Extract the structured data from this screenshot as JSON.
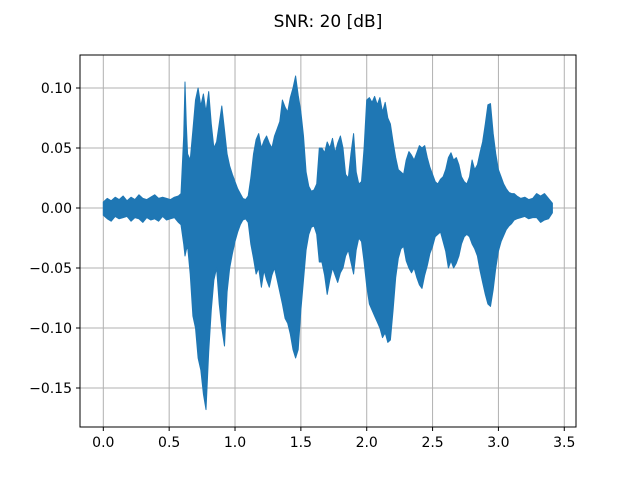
{
  "figure": {
    "background": "#ffffff"
  },
  "chart_data": {
    "type": "line",
    "subtype": "audio-waveform-envelope",
    "title": "SNR: 20 [dB]",
    "xlabel": "",
    "ylabel": "",
    "grid": true,
    "legend_position": "none",
    "line_color": "#1f77b4",
    "grid_color": "#b0b0b0",
    "frame_color": "#000000",
    "xlim": [
      -0.177,
      3.589
    ],
    "ylim": [
      -0.1825,
      0.1275
    ],
    "xticks": {
      "values": [
        0.0,
        0.5,
        1.0,
        1.5,
        2.0,
        2.5,
        3.0,
        3.5
      ],
      "labels": [
        "0.0",
        "0.5",
        "1.0",
        "1.5",
        "2.0",
        "2.5",
        "3.0",
        "3.5"
      ]
    },
    "yticks": {
      "values": [
        0.1,
        0.05,
        0.0,
        -0.05,
        -0.1,
        -0.15
      ],
      "labels": [
        "0.10",
        "0.05",
        "0.00",
        "−0.05",
        "−0.10",
        "−0.15"
      ]
    },
    "signal_duration_seconds": 3.41,
    "signal_peak_max": 0.11,
    "signal_peak_min": -0.168,
    "envelope_points": [
      [
        0.0,
        0.005,
        -0.006
      ],
      [
        0.03,
        0.008,
        -0.009
      ],
      [
        0.06,
        0.006,
        -0.011
      ],
      [
        0.09,
        0.009,
        -0.007
      ],
      [
        0.12,
        0.007,
        -0.009
      ],
      [
        0.15,
        0.01,
        -0.008
      ],
      [
        0.18,
        0.006,
        -0.007
      ],
      [
        0.21,
        0.009,
        -0.011
      ],
      [
        0.24,
        0.007,
        -0.008
      ],
      [
        0.27,
        0.011,
        -0.009
      ],
      [
        0.3,
        0.008,
        -0.012
      ],
      [
        0.33,
        0.007,
        -0.008
      ],
      [
        0.36,
        0.009,
        -0.01
      ],
      [
        0.39,
        0.011,
        -0.009
      ],
      [
        0.42,
        0.008,
        -0.011
      ],
      [
        0.45,
        0.009,
        -0.007
      ],
      [
        0.48,
        0.008,
        -0.01
      ],
      [
        0.51,
        0.007,
        -0.009
      ],
      [
        0.54,
        0.009,
        -0.008
      ],
      [
        0.57,
        0.01,
        -0.012
      ],
      [
        0.59,
        0.012,
        -0.014
      ],
      [
        0.61,
        0.06,
        -0.03
      ],
      [
        0.62,
        0.105,
        -0.04
      ],
      [
        0.63,
        0.07,
        -0.035
      ],
      [
        0.64,
        0.045,
        -0.032
      ],
      [
        0.66,
        0.04,
        -0.055
      ],
      [
        0.68,
        0.065,
        -0.09
      ],
      [
        0.7,
        0.09,
        -0.1
      ],
      [
        0.72,
        0.1,
        -0.125
      ],
      [
        0.74,
        0.085,
        -0.135
      ],
      [
        0.76,
        0.095,
        -0.155
      ],
      [
        0.78,
        0.08,
        -0.168
      ],
      [
        0.8,
        0.097,
        -0.12
      ],
      [
        0.82,
        0.07,
        -0.085
      ],
      [
        0.84,
        0.05,
        -0.06
      ],
      [
        0.86,
        0.055,
        -0.05
      ],
      [
        0.88,
        0.07,
        -0.08
      ],
      [
        0.9,
        0.085,
        -0.1
      ],
      [
        0.92,
        0.065,
        -0.115
      ],
      [
        0.94,
        0.045,
        -0.07
      ],
      [
        0.96,
        0.035,
        -0.05
      ],
      [
        0.98,
        0.028,
        -0.038
      ],
      [
        1.0,
        0.022,
        -0.028
      ],
      [
        1.02,
        0.016,
        -0.02
      ],
      [
        1.04,
        0.012,
        -0.014
      ],
      [
        1.06,
        0.008,
        -0.01
      ],
      [
        1.08,
        0.007,
        -0.009
      ],
      [
        1.1,
        0.01,
        -0.012
      ],
      [
        1.12,
        0.025,
        -0.03
      ],
      [
        1.14,
        0.045,
        -0.042
      ],
      [
        1.16,
        0.057,
        -0.055
      ],
      [
        1.18,
        0.062,
        -0.05
      ],
      [
        1.2,
        0.05,
        -0.066
      ],
      [
        1.22,
        0.056,
        -0.052
      ],
      [
        1.24,
        0.06,
        -0.06
      ],
      [
        1.26,
        0.054,
        -0.066
      ],
      [
        1.28,
        0.05,
        -0.056
      ],
      [
        1.3,
        0.06,
        -0.05
      ],
      [
        1.32,
        0.066,
        -0.06
      ],
      [
        1.34,
        0.072,
        -0.07
      ],
      [
        1.36,
        0.09,
        -0.08
      ],
      [
        1.38,
        0.084,
        -0.092
      ],
      [
        1.4,
        0.08,
        -0.096
      ],
      [
        1.42,
        0.092,
        -0.105
      ],
      [
        1.44,
        0.1,
        -0.118
      ],
      [
        1.46,
        0.11,
        -0.125
      ],
      [
        1.48,
        0.094,
        -0.118
      ],
      [
        1.5,
        0.08,
        -0.085
      ],
      [
        1.52,
        0.06,
        -0.06
      ],
      [
        1.54,
        0.03,
        -0.035
      ],
      [
        1.56,
        0.018,
        -0.022
      ],
      [
        1.58,
        0.014,
        -0.016
      ],
      [
        1.6,
        0.015,
        -0.015
      ],
      [
        1.62,
        0.02,
        -0.022
      ],
      [
        1.64,
        0.05,
        -0.045
      ],
      [
        1.66,
        0.05,
        -0.045
      ],
      [
        1.68,
        0.046,
        -0.056
      ],
      [
        1.7,
        0.055,
        -0.072
      ],
      [
        1.72,
        0.05,
        -0.06
      ],
      [
        1.74,
        0.058,
        -0.05
      ],
      [
        1.76,
        0.046,
        -0.056
      ],
      [
        1.78,
        0.054,
        -0.062
      ],
      [
        1.8,
        0.06,
        -0.054
      ],
      [
        1.82,
        0.05,
        -0.05
      ],
      [
        1.84,
        0.028,
        -0.04
      ],
      [
        1.86,
        0.025,
        -0.035
      ],
      [
        1.88,
        0.045,
        -0.045
      ],
      [
        1.9,
        0.062,
        -0.055
      ],
      [
        1.92,
        0.03,
        -0.035
      ],
      [
        1.94,
        0.02,
        -0.025
      ],
      [
        1.96,
        0.022,
        -0.028
      ],
      [
        1.98,
        0.05,
        -0.045
      ],
      [
        2.0,
        0.09,
        -0.065
      ],
      [
        2.02,
        0.092,
        -0.08
      ],
      [
        2.04,
        0.088,
        -0.085
      ],
      [
        2.06,
        0.093,
        -0.09
      ],
      [
        2.08,
        0.086,
        -0.095
      ],
      [
        2.1,
        0.092,
        -0.1
      ],
      [
        2.12,
        0.08,
        -0.108
      ],
      [
        2.14,
        0.088,
        -0.104
      ],
      [
        2.16,
        0.075,
        -0.112
      ],
      [
        2.18,
        0.07,
        -0.11
      ],
      [
        2.2,
        0.055,
        -0.085
      ],
      [
        2.22,
        0.042,
        -0.058
      ],
      [
        2.24,
        0.032,
        -0.042
      ],
      [
        2.26,
        0.03,
        -0.034
      ],
      [
        2.28,
        0.028,
        -0.032
      ],
      [
        2.3,
        0.04,
        -0.044
      ],
      [
        2.32,
        0.047,
        -0.05
      ],
      [
        2.34,
        0.044,
        -0.054
      ],
      [
        2.36,
        0.04,
        -0.05
      ],
      [
        2.38,
        0.046,
        -0.058
      ],
      [
        2.4,
        0.052,
        -0.064
      ],
      [
        2.42,
        0.05,
        -0.067
      ],
      [
        2.44,
        0.052,
        -0.056
      ],
      [
        2.46,
        0.042,
        -0.048
      ],
      [
        2.48,
        0.034,
        -0.038
      ],
      [
        2.5,
        0.028,
        -0.032
      ],
      [
        2.52,
        0.022,
        -0.024
      ],
      [
        2.54,
        0.02,
        -0.022
      ],
      [
        2.56,
        0.024,
        -0.02
      ],
      [
        2.58,
        0.026,
        -0.028
      ],
      [
        2.6,
        0.032,
        -0.036
      ],
      [
        2.62,
        0.042,
        -0.05
      ],
      [
        2.64,
        0.046,
        -0.044
      ],
      [
        2.66,
        0.04,
        -0.05
      ],
      [
        2.68,
        0.042,
        -0.046
      ],
      [
        2.7,
        0.036,
        -0.04
      ],
      [
        2.72,
        0.026,
        -0.03
      ],
      [
        2.74,
        0.022,
        -0.024
      ],
      [
        2.76,
        0.02,
        -0.022
      ],
      [
        2.78,
        0.026,
        -0.024
      ],
      [
        2.8,
        0.04,
        -0.03
      ],
      [
        2.82,
        0.032,
        -0.034
      ],
      [
        2.84,
        0.036,
        -0.04
      ],
      [
        2.86,
        0.046,
        -0.052
      ],
      [
        2.88,
        0.055,
        -0.062
      ],
      [
        2.9,
        0.07,
        -0.072
      ],
      [
        2.92,
        0.086,
        -0.08
      ],
      [
        2.94,
        0.087,
        -0.082
      ],
      [
        2.96,
        0.062,
        -0.068
      ],
      [
        2.98,
        0.045,
        -0.05
      ],
      [
        3.0,
        0.032,
        -0.036
      ],
      [
        3.02,
        0.026,
        -0.028
      ],
      [
        3.04,
        0.02,
        -0.023
      ],
      [
        3.06,
        0.016,
        -0.018
      ],
      [
        3.08,
        0.013,
        -0.015
      ],
      [
        3.1,
        0.012,
        -0.013
      ],
      [
        3.12,
        0.012,
        -0.01
      ],
      [
        3.14,
        0.01,
        -0.009
      ],
      [
        3.17,
        0.008,
        -0.008
      ],
      [
        3.2,
        0.009,
        -0.007
      ],
      [
        3.23,
        0.007,
        -0.009
      ],
      [
        3.26,
        0.008,
        -0.008
      ],
      [
        3.29,
        0.012,
        -0.008
      ],
      [
        3.32,
        0.01,
        -0.012
      ],
      [
        3.35,
        0.012,
        -0.01
      ],
      [
        3.38,
        0.008,
        -0.009
      ],
      [
        3.41,
        0.004,
        -0.004
      ]
    ]
  }
}
